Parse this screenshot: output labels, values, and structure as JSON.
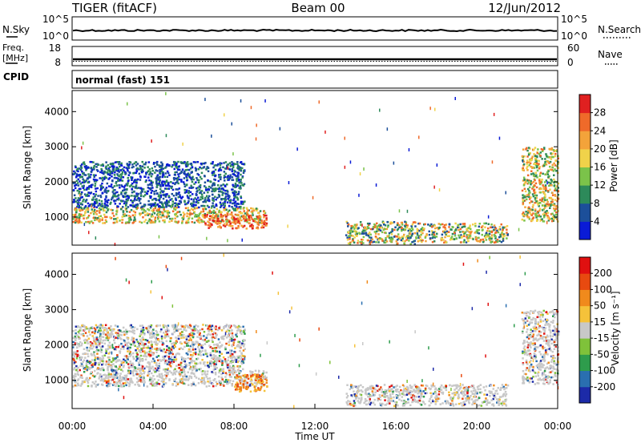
{
  "header": {
    "title_left": "TIGER (fitACF)",
    "title_center": "Beam 00",
    "title_right": "12/Jun/2012"
  },
  "strip1": {
    "label_left": "N.Sky",
    "label_right": "N.Search",
    "left_ticks": [
      "10^5",
      "10^0"
    ],
    "right_ticks": [
      "10^5",
      "10^0"
    ]
  },
  "strip2": {
    "label_left_1": "Freq.",
    "label_left_2": "[MHz]",
    "label_right": "Nave",
    "left_ticks": [
      "18",
      "8"
    ],
    "right_ticks": [
      "60",
      "0"
    ]
  },
  "cpid": {
    "label": "CPID",
    "value": "normal (fast) 151"
  },
  "chart_data": [
    {
      "type": "heatmap",
      "name": "power",
      "ylabel": "Slant Range [km]",
      "ylim": [
        200,
        4600
      ],
      "yticks": [
        "1000",
        "2000",
        "3000",
        "4000"
      ],
      "colorbar": {
        "label": "Power [dB]",
        "ticks": [
          "4",
          "8",
          "12",
          "16",
          "20",
          "24",
          "28"
        ],
        "colors": [
          "#0a1bd6",
          "#1c4f9a",
          "#2d8a5a",
          "#7bc34a",
          "#f0d24a",
          "#f3a33a",
          "#ef6a2a",
          "#e02020"
        ]
      },
      "regions": [
        {
          "x": [
            0.0,
            9.6
          ],
          "y": [
            850,
            1300
          ],
          "level": "high"
        },
        {
          "x": [
            6.5,
            9.6
          ],
          "y": [
            700,
            1100
          ],
          "level": "max"
        },
        {
          "x": [
            0.0,
            8.5
          ],
          "y": [
            1300,
            2600
          ],
          "level": "low"
        },
        {
          "x": [
            13.5,
            17.0
          ],
          "y": [
            250,
            900
          ],
          "level": "mid"
        },
        {
          "x": [
            17.0,
            21.5
          ],
          "y": [
            300,
            850
          ],
          "level": "mid"
        },
        {
          "x": [
            22.2,
            24.0
          ],
          "y": [
            900,
            3000
          ],
          "level": "high"
        }
      ]
    },
    {
      "type": "heatmap",
      "name": "velocity",
      "xlabel": "Time UT",
      "ylabel": "Slant Range [km]",
      "ylim": [
        200,
        4600
      ],
      "yticks": [
        "1000",
        "2000",
        "3000",
        "4000"
      ],
      "xticks": [
        "00:00",
        "04:00",
        "08:00",
        "12:00",
        "16:00",
        "20:00",
        "00:00"
      ],
      "colorbar": {
        "label": "Velocity [m s⁻¹]",
        "ticks": [
          "200",
          "100",
          "50",
          "15",
          "-15",
          "-50",
          "-100",
          "-200"
        ],
        "colors": [
          "#1c2aa8",
          "#2a6fb0",
          "#2e9c4c",
          "#7fc23a",
          "#c8c8c8",
          "#f5c23a",
          "#f08a1c",
          "#e84a10",
          "#e01010"
        ]
      },
      "regions": [
        {
          "x": [
            0.0,
            9.6
          ],
          "y": [
            850,
            1300
          ],
          "level": "ground"
        },
        {
          "x": [
            8.0,
            9.6
          ],
          "y": [
            700,
            1200
          ],
          "level": "away"
        },
        {
          "x": [
            0.0,
            8.5
          ],
          "y": [
            1300,
            2600
          ],
          "level": "mixed"
        },
        {
          "x": [
            13.5,
            21.5
          ],
          "y": [
            300,
            900
          ],
          "level": "ground"
        },
        {
          "x": [
            22.2,
            24.0
          ],
          "y": [
            900,
            3000
          ],
          "level": "ground"
        }
      ]
    }
  ]
}
